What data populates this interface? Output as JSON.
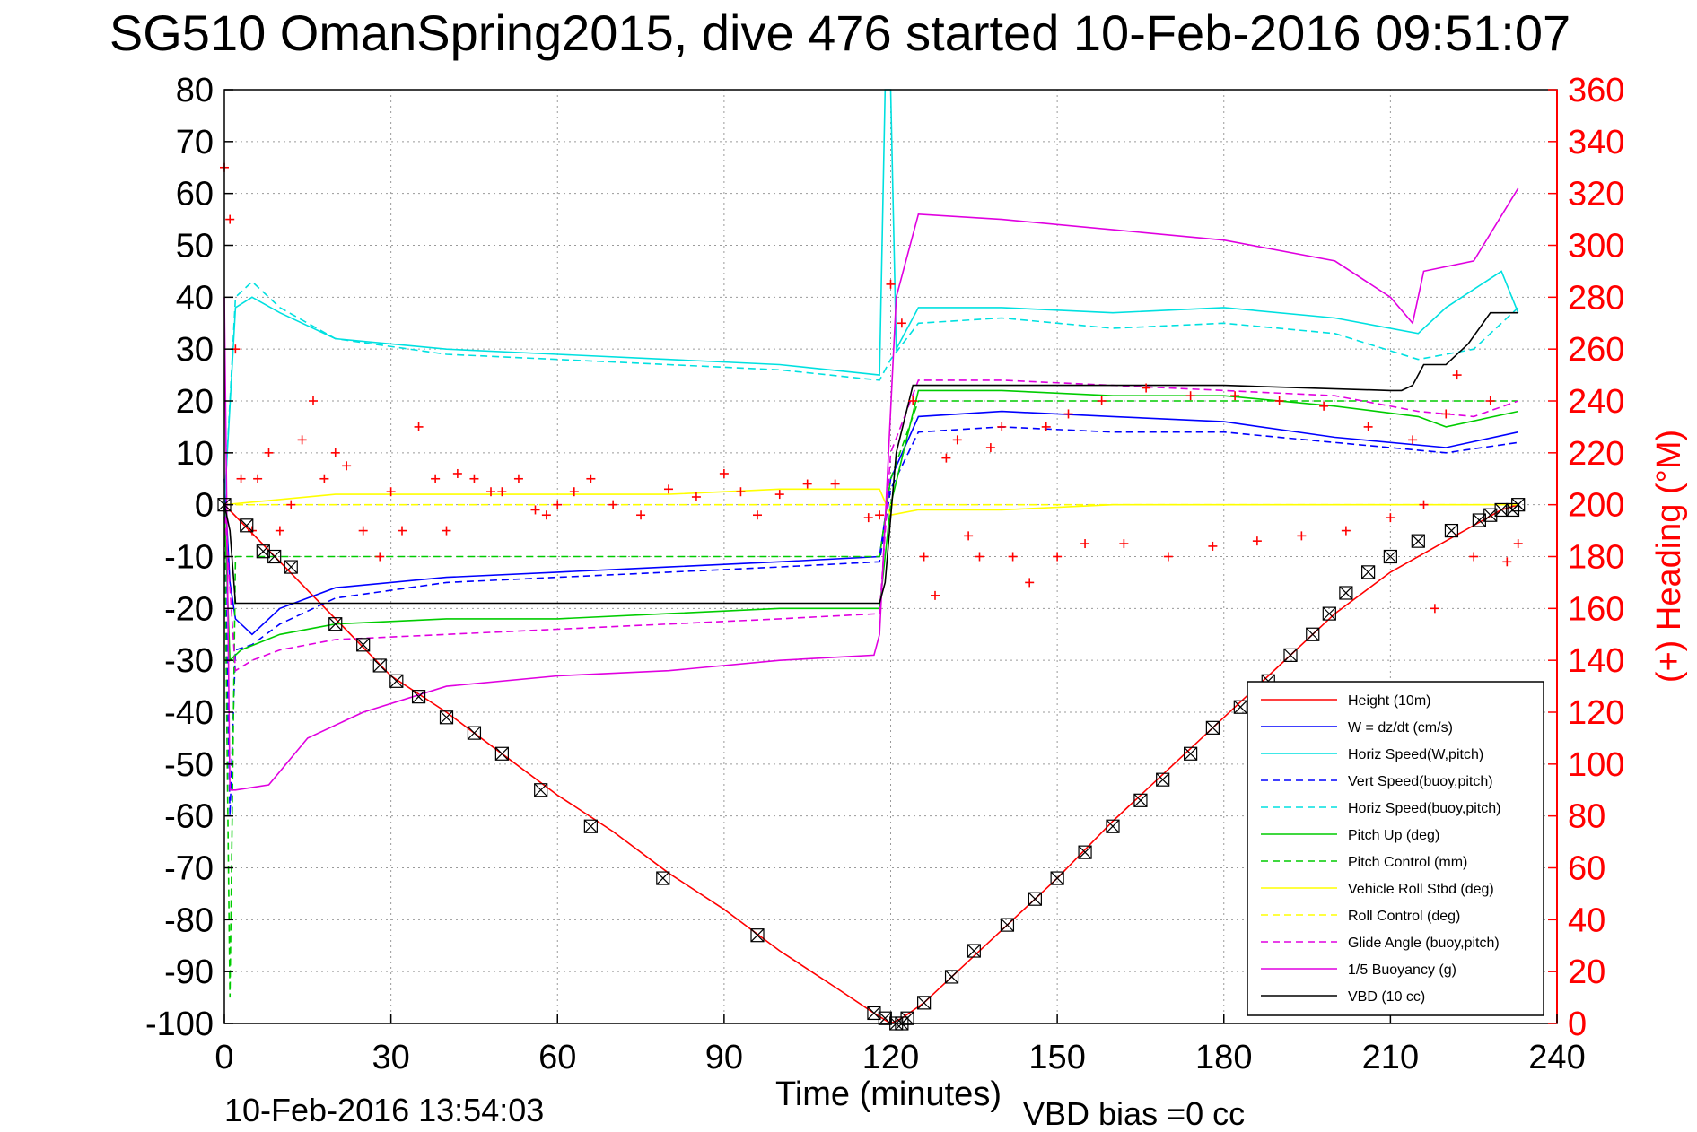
{
  "figure": {
    "title": "SG510 OmanSpring2015, dive 476 started 10-Feb-2016 09:51:07",
    "xlabel": "Time (minutes)",
    "y2label": "(+) Heading (°M)",
    "footer_left": "10-Feb-2016 13:54:03",
    "footer_right": "VBD bias =0 cc"
  },
  "chart_data": {
    "type": "line",
    "title": "SG510 OmanSpring2015, dive 476 started 10-Feb-2016 09:51:07",
    "xlabel": "Time (minutes)",
    "ylabel": "",
    "y2label": "(+) Heading (°M)",
    "xlim": [
      0,
      240
    ],
    "ylim": [
      -100,
      80
    ],
    "y2lim": [
      0,
      360
    ],
    "xticks": [
      0,
      30,
      60,
      90,
      120,
      150,
      180,
      210,
      240
    ],
    "yticks": [
      80,
      70,
      60,
      50,
      40,
      30,
      20,
      10,
      0,
      -10,
      -20,
      -30,
      -40,
      -50,
      -60,
      -70,
      -80,
      -90,
      -100
    ],
    "y2ticks": [
      360,
      340,
      320,
      300,
      280,
      260,
      240,
      220,
      200,
      180,
      160,
      140,
      120,
      100,
      80,
      60,
      40,
      20,
      0
    ],
    "grid": true,
    "legend_position": "bottom-right",
    "series": [
      {
        "name": "Height (10m)",
        "color": "#ff0000",
        "dash": "solid",
        "axis": "left",
        "x": [
          0,
          10,
          20,
          30,
          40,
          50,
          60,
          70,
          80,
          90,
          100,
          110,
          117,
          120,
          122,
          126,
          130,
          140,
          150,
          160,
          170,
          180,
          190,
          200,
          210,
          220,
          230,
          233
        ],
        "y": [
          0,
          -11,
          -22,
          -33,
          -40,
          -48,
          -56,
          -63,
          -71,
          -78,
          -86,
          -93,
          -98,
          -100,
          -99,
          -96,
          -92,
          -82,
          -72,
          -61,
          -51,
          -41,
          -31,
          -21,
          -13,
          -7,
          -1,
          0
        ]
      },
      {
        "name": "W = dz/dt (cm/s)",
        "color": "#0000ff",
        "dash": "solid",
        "axis": "left",
        "x": [
          0,
          1,
          2,
          5,
          10,
          20,
          40,
          60,
          80,
          100,
          118,
          120,
          125,
          140,
          160,
          180,
          200,
          220,
          233
        ],
        "y": [
          5,
          -15,
          -22,
          -25,
          -20,
          -16,
          -14,
          -13,
          -12,
          -11,
          -10,
          5,
          17,
          18,
          17,
          16,
          13,
          11,
          14
        ]
      },
      {
        "name": "Horiz Speed(W,pitch)",
        "color": "#00e0e0",
        "dash": "solid",
        "axis": "left",
        "x": [
          0,
          2,
          5,
          10,
          20,
          40,
          60,
          80,
          100,
          118,
          119,
          120,
          121,
          125,
          140,
          160,
          180,
          200,
          215,
          220,
          230,
          233
        ],
        "y": [
          0,
          38,
          40,
          37,
          32,
          30,
          29,
          28,
          27,
          25,
          80,
          80,
          30,
          38,
          38,
          37,
          38,
          36,
          33,
          38,
          45,
          37
        ]
      },
      {
        "name": "Vert Speed(buoy,pitch)",
        "color": "#0000ff",
        "dash": "dashed",
        "axis": "left",
        "x": [
          0,
          1,
          2,
          5,
          10,
          20,
          40,
          60,
          80,
          100,
          118,
          120,
          125,
          140,
          160,
          180,
          200,
          220,
          233
        ],
        "y": [
          0,
          -60,
          -28,
          -27,
          -23,
          -18,
          -15,
          -14,
          -13,
          -12,
          -11,
          3,
          14,
          15,
          14,
          14,
          12,
          10,
          12
        ]
      },
      {
        "name": "Horiz Speed(buoy,pitch)",
        "color": "#00e0e0",
        "dash": "dashed",
        "axis": "left",
        "x": [
          0,
          2,
          5,
          10,
          20,
          40,
          60,
          80,
          100,
          118,
          120,
          125,
          140,
          160,
          180,
          200,
          215,
          225,
          233
        ],
        "y": [
          0,
          40,
          43,
          38,
          32,
          29,
          28,
          27,
          26,
          24,
          28,
          35,
          36,
          34,
          35,
          33,
          28,
          30,
          38
        ]
      },
      {
        "name": "Pitch Up (deg)",
        "color": "#00cc00",
        "dash": "solid",
        "axis": "left",
        "x": [
          0,
          1,
          3,
          10,
          20,
          40,
          60,
          80,
          100,
          118,
          120,
          125,
          140,
          160,
          180,
          200,
          215,
          220,
          233
        ],
        "y": [
          0,
          -30,
          -28,
          -25,
          -23,
          -22,
          -22,
          -21,
          -20,
          -20,
          0,
          22,
          22,
          21,
          21,
          19,
          17,
          15,
          18
        ]
      },
      {
        "name": "Pitch Control (mm)",
        "color": "#00cc00",
        "dash": "dashed",
        "axis": "left",
        "x": [
          0,
          1,
          2,
          10,
          30,
          60,
          90,
          118,
          120,
          125,
          150,
          180,
          210,
          233
        ],
        "y": [
          0,
          -95,
          -10,
          -10,
          -10,
          -10,
          -10,
          -10,
          5,
          20,
          20,
          20,
          20,
          20
        ]
      },
      {
        "name": "Vehicle Roll Stbd (deg)",
        "color": "#ffff00",
        "dash": "solid",
        "axis": "left",
        "x": [
          0,
          20,
          40,
          60,
          80,
          100,
          118,
          120,
          125,
          140,
          160,
          180,
          200,
          220,
          233
        ],
        "y": [
          0,
          2,
          2,
          2,
          2,
          3,
          3,
          -2,
          -1,
          -1,
          0,
          0,
          0,
          0,
          0
        ]
      },
      {
        "name": "Roll Control (deg)",
        "color": "#ffff00",
        "dash": "dashed",
        "axis": "left",
        "x": [
          0,
          60,
          120,
          180,
          233
        ],
        "y": [
          0,
          0,
          0,
          0,
          0
        ]
      },
      {
        "name": "Glide Angle (buoy,pitch)",
        "color": "#e000e0",
        "dash": "dashed",
        "axis": "left",
        "x": [
          0,
          2,
          5,
          10,
          20,
          40,
          60,
          80,
          100,
          118,
          120,
          125,
          140,
          160,
          180,
          200,
          215,
          225,
          233
        ],
        "y": [
          0,
          -32,
          -30,
          -28,
          -26,
          -25,
          -24,
          -23,
          -22,
          -21,
          10,
          24,
          24,
          23,
          22,
          21,
          18,
          17,
          20
        ]
      },
      {
        "name": "1/5 Buoyancy (g)",
        "color": "#e000e0",
        "dash": "solid",
        "axis": "left",
        "x": [
          0,
          1,
          2,
          8,
          15,
          25,
          40,
          60,
          80,
          100,
          117,
          118,
          121,
          125,
          140,
          160,
          180,
          200,
          210,
          214,
          216,
          225,
          233
        ],
        "y": [
          40,
          -55,
          -55,
          -54,
          -45,
          -40,
          -35,
          -33,
          -32,
          -30,
          -29,
          -25,
          40,
          56,
          55,
          53,
          51,
          47,
          40,
          35,
          45,
          47,
          61
        ]
      },
      {
        "name": "VBD (10 cc)",
        "color": "#000000",
        "dash": "solid",
        "axis": "left",
        "x": [
          0,
          1,
          2,
          10,
          30,
          60,
          90,
          118,
          119,
          121,
          124,
          150,
          180,
          210,
          212,
          214,
          216,
          220,
          224,
          228,
          233
        ],
        "y": [
          0,
          -5,
          -19,
          -19,
          -19,
          -19,
          -19,
          -19,
          -15,
          10,
          23,
          23,
          23,
          22,
          22,
          23,
          27,
          27,
          31,
          37,
          37
        ]
      }
    ],
    "heading": {
      "name": "(+) Heading",
      "color": "#ff0000",
      "marker": "+",
      "axis": "right",
      "x": [
        0,
        1,
        2,
        3,
        5,
        6,
        8,
        10,
        12,
        14,
        16,
        18,
        20,
        22,
        25,
        28,
        30,
        32,
        35,
        38,
        40,
        42,
        45,
        48,
        50,
        53,
        56,
        58,
        60,
        63,
        66,
        70,
        75,
        80,
        85,
        90,
        93,
        96,
        100,
        105,
        110,
        116,
        118,
        120,
        122,
        124,
        126,
        128,
        130,
        132,
        134,
        136,
        138,
        140,
        142,
        145,
        148,
        150,
        152,
        155,
        158,
        162,
        166,
        170,
        174,
        178,
        182,
        186,
        190,
        194,
        198,
        202,
        206,
        210,
        214,
        216,
        218,
        220,
        222,
        225,
        228,
        231,
        233
      ],
      "y": [
        330,
        310,
        260,
        210,
        190,
        210,
        220,
        190,
        200,
        225,
        240,
        210,
        220,
        215,
        190,
        180,
        205,
        190,
        230,
        210,
        190,
        212,
        210,
        205,
        205,
        210,
        198,
        196,
        200,
        205,
        210,
        200,
        196,
        206,
        203,
        212,
        205,
        196,
        204,
        208,
        208,
        195,
        196,
        285,
        270,
        240,
        180,
        165,
        218,
        225,
        188,
        180,
        222,
        230,
        180,
        170,
        230,
        180,
        235,
        185,
        240,
        185,
        245,
        180,
        242,
        184,
        242,
        186,
        240,
        188,
        238,
        190,
        230,
        195,
        225,
        200,
        160,
        235,
        250,
        180,
        240,
        178,
        185
      ]
    },
    "markers": {
      "name": "Height fixes",
      "color": "#000000",
      "marker": "hourglass-box",
      "axis": "left",
      "x": [
        0,
        4,
        7,
        9,
        12,
        20,
        25,
        28,
        31,
        35,
        40,
        45,
        50,
        57,
        66,
        79,
        96,
        117,
        119,
        121,
        122,
        123,
        126,
        131,
        135,
        141,
        146,
        150,
        155,
        160,
        165,
        169,
        174,
        178,
        183,
        188,
        192,
        196,
        199,
        202,
        206,
        210,
        215,
        221,
        226,
        228,
        230,
        232,
        233
      ],
      "y": [
        0,
        -4,
        -9,
        -10,
        -12,
        -23,
        -27,
        -31,
        -34,
        -37,
        -41,
        -44,
        -48,
        -55,
        -62,
        -72,
        -83,
        -98,
        -99,
        -100,
        -100,
        -99,
        -96,
        -91,
        -86,
        -81,
        -76,
        -72,
        -67,
        -62,
        -57,
        -53,
        -48,
        -43,
        -39,
        -34,
        -29,
        -25,
        -21,
        -17,
        -13,
        -10,
        -7,
        -5,
        -3,
        -2,
        -1,
        -1,
        0
      ]
    }
  },
  "legend": {
    "items": [
      {
        "label": "Height (10m)",
        "color": "#ff0000",
        "dash": "solid"
      },
      {
        "label": "W = dz/dt (cm/s)",
        "color": "#0000ff",
        "dash": "solid"
      },
      {
        "label": "Horiz Speed(W,pitch)",
        "color": "#00e0e0",
        "dash": "solid"
      },
      {
        "label": "Vert Speed(buoy,pitch)",
        "color": "#0000ff",
        "dash": "dashed"
      },
      {
        "label": "Horiz Speed(buoy,pitch)",
        "color": "#00e0e0",
        "dash": "dashed"
      },
      {
        "label": "Pitch Up (deg)",
        "color": "#00cc00",
        "dash": "solid"
      },
      {
        "label": "Pitch Control (mm)",
        "color": "#00cc00",
        "dash": "dashed"
      },
      {
        "label": "Vehicle Roll Stbd (deg)",
        "color": "#ffff00",
        "dash": "solid"
      },
      {
        "label": "Roll Control (deg)",
        "color": "#ffff00",
        "dash": "dashed"
      },
      {
        "label": "Glide Angle (buoy,pitch)",
        "color": "#e000e0",
        "dash": "dashed"
      },
      {
        "label": "1/5 Buoyancy (g)",
        "color": "#e000e0",
        "dash": "solid"
      },
      {
        "label": "VBD (10 cc)",
        "color": "#000000",
        "dash": "solid"
      }
    ]
  }
}
